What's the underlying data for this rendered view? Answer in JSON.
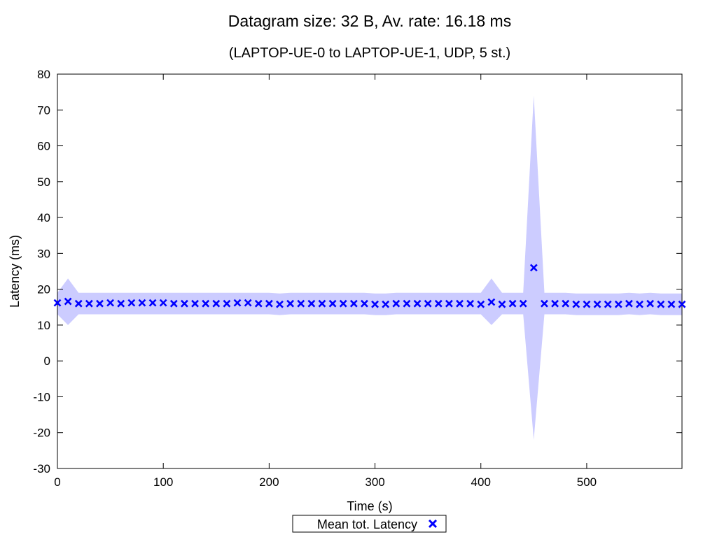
{
  "chart_data": {
    "type": "scatter",
    "title": "Datagram size: 32 B, Av. rate: 16.18 ms",
    "subtitle": "(LAPTOP-UE-0 to LAPTOP-UE-1, UDP, 5 st.)",
    "xlabel": "Time (s)",
    "ylabel": "Latency (ms)",
    "xlim": [
      0,
      590
    ],
    "ylim": [
      -30,
      80
    ],
    "xticks": [
      0,
      100,
      200,
      300,
      400,
      500
    ],
    "yticks": [
      -30,
      -20,
      -10,
      0,
      10,
      20,
      30,
      40,
      50,
      60,
      70,
      80
    ],
    "grid": false,
    "legend_position": "bottom-center",
    "colors": {
      "marker": "#0000ff",
      "band": "#ccccff"
    },
    "series": [
      {
        "name": "Mean tot. Latency",
        "x": [
          0,
          10,
          20,
          30,
          40,
          50,
          60,
          70,
          80,
          90,
          100,
          110,
          120,
          130,
          140,
          150,
          160,
          170,
          180,
          190,
          200,
          210,
          220,
          230,
          240,
          250,
          260,
          270,
          280,
          290,
          300,
          310,
          320,
          330,
          340,
          350,
          360,
          370,
          380,
          390,
          400,
          410,
          420,
          430,
          440,
          450,
          460,
          470,
          480,
          490,
          500,
          510,
          520,
          530,
          540,
          550,
          560,
          570,
          580,
          590
        ],
        "y": [
          16.2,
          16.6,
          16.0,
          16.0,
          16.0,
          16.2,
          16.0,
          16.2,
          16.2,
          16.2,
          16.2,
          16.0,
          16.0,
          16.0,
          16.0,
          16.0,
          16.0,
          16.2,
          16.2,
          16.0,
          16.0,
          15.8,
          16.0,
          16.0,
          16.0,
          16.0,
          16.0,
          16.0,
          16.0,
          16.0,
          15.8,
          15.8,
          16.0,
          16.0,
          16.0,
          16.0,
          16.0,
          16.0,
          16.0,
          16.0,
          15.8,
          16.4,
          15.8,
          16.0,
          16.0,
          26.0,
          16.0,
          16.0,
          16.0,
          15.8,
          15.8,
          15.8,
          15.8,
          15.8,
          16.0,
          15.8,
          16.0,
          15.8,
          15.8,
          15.8
        ],
        "lower": [
          13.0,
          10.0,
          13.0,
          13.0,
          13.0,
          13.0,
          13.0,
          13.0,
          13.0,
          13.0,
          13.0,
          13.0,
          13.0,
          13.0,
          13.0,
          13.0,
          13.0,
          13.0,
          13.0,
          13.0,
          13.0,
          12.8,
          13.0,
          13.0,
          13.0,
          13.0,
          13.0,
          13.0,
          13.0,
          13.0,
          12.8,
          12.8,
          13.0,
          13.0,
          13.0,
          13.0,
          13.0,
          13.0,
          13.0,
          13.0,
          13.0,
          10.0,
          13.0,
          13.0,
          13.0,
          -22.0,
          13.0,
          13.0,
          13.0,
          12.8,
          12.8,
          12.8,
          12.8,
          12.8,
          13.0,
          12.8,
          13.0,
          12.8,
          12.8,
          12.8
        ],
        "upper": [
          19.0,
          23.0,
          19.0,
          19.0,
          19.0,
          19.0,
          19.0,
          19.0,
          19.0,
          19.0,
          19.0,
          19.0,
          19.0,
          19.0,
          19.0,
          19.0,
          19.0,
          19.0,
          19.0,
          19.0,
          19.0,
          18.8,
          19.0,
          19.0,
          19.0,
          19.0,
          19.0,
          19.0,
          19.0,
          19.0,
          18.8,
          18.8,
          19.0,
          19.0,
          19.0,
          19.0,
          19.0,
          19.0,
          19.0,
          19.0,
          19.0,
          23.0,
          19.0,
          19.0,
          19.0,
          74.0,
          19.0,
          19.0,
          19.0,
          18.8,
          18.8,
          18.8,
          18.8,
          18.8,
          19.0,
          18.8,
          19.0,
          18.8,
          18.8,
          18.8
        ]
      }
    ]
  }
}
